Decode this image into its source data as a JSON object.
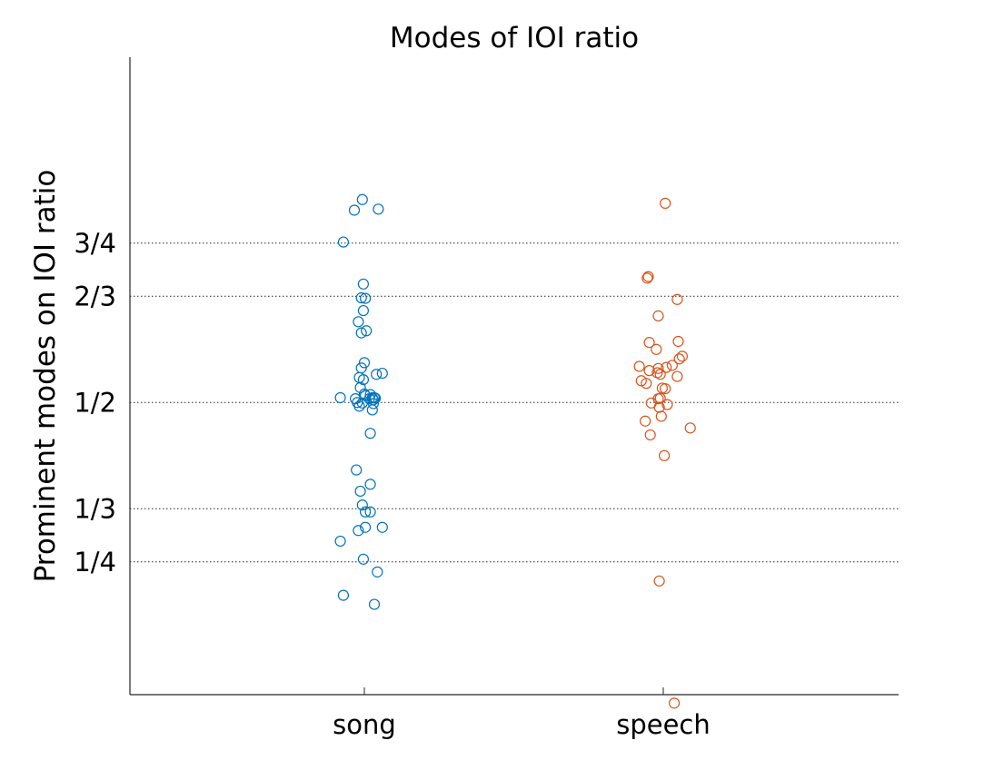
{
  "chart_data": {
    "type": "scatter",
    "title": "Modes of IOI ratio",
    "xlabel": "",
    "ylabel": "Prominent modes on IOI ratio",
    "categories": [
      "song",
      "speech"
    ],
    "ylim": [
      -0.05,
      1.15
    ],
    "yticks": [
      {
        "value": 0.2,
        "label": "1/4"
      },
      {
        "value": 0.3,
        "label": "1/3"
      },
      {
        "value": 0.5,
        "label": "1/2"
      },
      {
        "value": 0.7,
        "label": "2/3"
      },
      {
        "value": 0.8,
        "label": "3/4"
      }
    ],
    "grid": "horizontal dotted at ticks",
    "series": [
      {
        "color": "#0072BD",
        "points": [
          {
            "x": -0.24,
            "y": 0.509
          },
          {
            "x": -0.24,
            "y": 0.239
          },
          {
            "x": -0.21,
            "y": 0.137
          },
          {
            "x": -0.21,
            "y": 0.802
          },
          {
            "x": -0.1,
            "y": 0.862
          },
          {
            "x": -0.02,
            "y": 0.882
          },
          {
            "x": 0.14,
            "y": 0.864
          },
          {
            "x": -0.01,
            "y": 0.723
          },
          {
            "x": -0.03,
            "y": 0.697
          },
          {
            "x": 0.01,
            "y": 0.696
          },
          {
            "x": -0.01,
            "y": 0.673
          },
          {
            "x": -0.06,
            "y": 0.652
          },
          {
            "x": 0.02,
            "y": 0.635
          },
          {
            "x": -0.03,
            "y": 0.631
          },
          {
            "x": 0.0,
            "y": 0.575
          },
          {
            "x": -0.03,
            "y": 0.565
          },
          {
            "x": -0.05,
            "y": 0.547
          },
          {
            "x": -0.01,
            "y": 0.543
          },
          {
            "x": -0.04,
            "y": 0.528
          },
          {
            "x": 0.0,
            "y": 0.516
          },
          {
            "x": 0.01,
            "y": 0.513
          },
          {
            "x": -0.09,
            "y": 0.507
          },
          {
            "x": -0.07,
            "y": 0.5
          },
          {
            "x": -0.05,
            "y": 0.493
          },
          {
            "x": -0.02,
            "y": 0.499
          },
          {
            "x": 0.06,
            "y": 0.515
          },
          {
            "x": 0.05,
            "y": 0.507
          },
          {
            "x": 0.08,
            "y": 0.509
          },
          {
            "x": 0.09,
            "y": 0.505
          },
          {
            "x": 0.1,
            "y": 0.509
          },
          {
            "x": 0.11,
            "y": 0.508
          },
          {
            "x": 0.09,
            "y": 0.498
          },
          {
            "x": 0.08,
            "y": 0.486
          },
          {
            "x": 0.12,
            "y": 0.553
          },
          {
            "x": 0.18,
            "y": 0.555
          },
          {
            "x": 0.06,
            "y": 0.442
          },
          {
            "x": -0.08,
            "y": 0.373
          },
          {
            "x": -0.04,
            "y": 0.333
          },
          {
            "x": 0.06,
            "y": 0.346
          },
          {
            "x": -0.02,
            "y": 0.307
          },
          {
            "x": 0.01,
            "y": 0.294
          },
          {
            "x": 0.06,
            "y": 0.294
          },
          {
            "x": 0.01,
            "y": 0.265
          },
          {
            "x": 0.18,
            "y": 0.265
          },
          {
            "x": -0.06,
            "y": 0.259
          },
          {
            "x": -0.01,
            "y": 0.205
          },
          {
            "x": 0.13,
            "y": 0.181
          },
          {
            "x": 0.1,
            "y": 0.12
          }
        ]
      },
      {
        "color": "#D95319",
        "points": [
          {
            "x": 0.02,
            "y": 0.875
          },
          {
            "x": -0.16,
            "y": 0.734
          },
          {
            "x": -0.15,
            "y": 0.737
          },
          {
            "x": 0.14,
            "y": 0.694
          },
          {
            "x": -0.05,
            "y": 0.663
          },
          {
            "x": -0.14,
            "y": 0.613
          },
          {
            "x": 0.15,
            "y": 0.615
          },
          {
            "x": -0.07,
            "y": 0.6
          },
          {
            "x": 0.19,
            "y": 0.587
          },
          {
            "x": 0.16,
            "y": 0.582
          },
          {
            "x": -0.24,
            "y": 0.568
          },
          {
            "x": 0.09,
            "y": 0.57
          },
          {
            "x": 0.03,
            "y": 0.566
          },
          {
            "x": -0.05,
            "y": 0.564
          },
          {
            "x": -0.14,
            "y": 0.56
          },
          {
            "x": -0.06,
            "y": 0.556
          },
          {
            "x": -0.03,
            "y": 0.553
          },
          {
            "x": 0.14,
            "y": 0.549
          },
          {
            "x": -0.22,
            "y": 0.541
          },
          {
            "x": -0.17,
            "y": 0.536
          },
          {
            "x": -0.01,
            "y": 0.527
          },
          {
            "x": 0.02,
            "y": 0.526
          },
          {
            "x": -0.05,
            "y": 0.507
          },
          {
            "x": -0.03,
            "y": 0.508
          },
          {
            "x": -0.12,
            "y": 0.499
          },
          {
            "x": 0.04,
            "y": 0.496
          },
          {
            "x": -0.04,
            "y": 0.491
          },
          {
            "x": -0.02,
            "y": 0.474
          },
          {
            "x": -0.18,
            "y": 0.465
          },
          {
            "x": 0.27,
            "y": 0.452
          },
          {
            "x": -0.13,
            "y": 0.439
          },
          {
            "x": 0.01,
            "y": 0.4
          },
          {
            "x": -0.04,
            "y": 0.164
          },
          {
            "x": 0.11,
            "y": -0.066
          }
        ]
      }
    ]
  }
}
